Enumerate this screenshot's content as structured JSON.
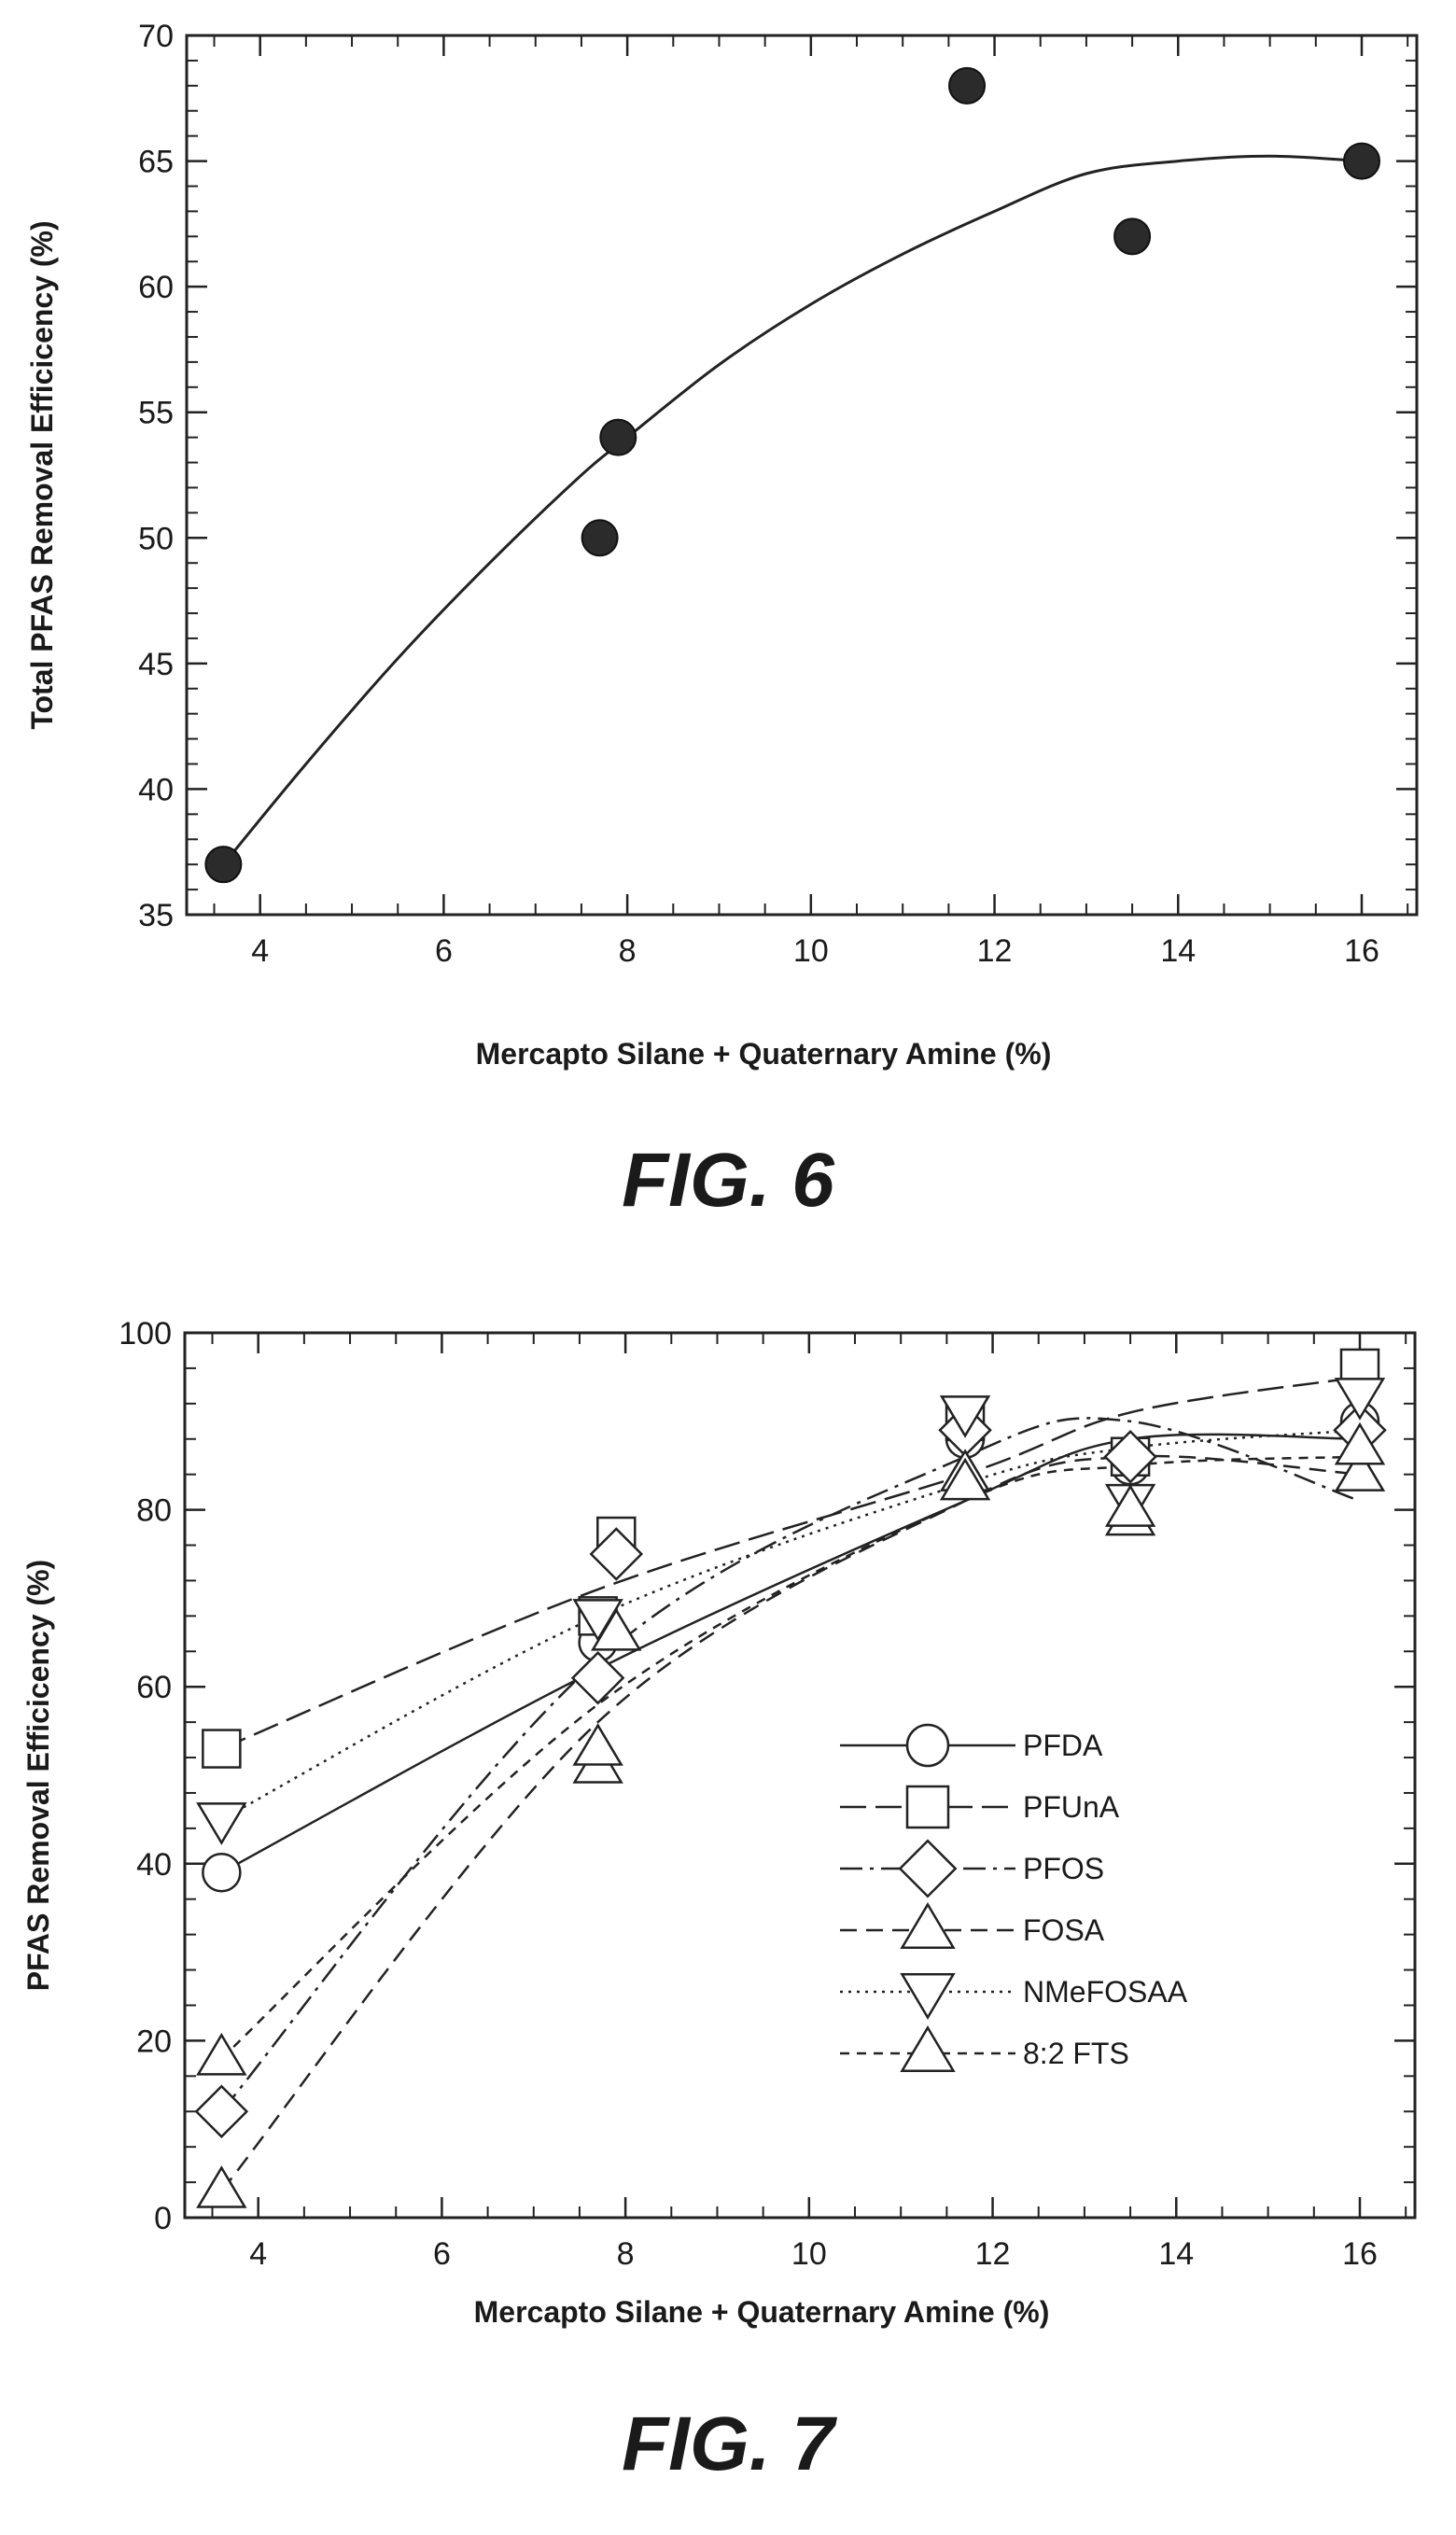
{
  "figures": [
    {
      "caption": "FIG. 6"
    },
    {
      "caption": "FIG. 7"
    }
  ],
  "chart_data": [
    {
      "type": "scatter",
      "xlabel": "Mercapto Silane + Quaternary Amine (%)",
      "ylabel": "Total PFAS Removal Efficicency (%)",
      "xlim": [
        3.2,
        16.6
      ],
      "ylim": [
        35,
        70
      ],
      "xticks": [
        4,
        6,
        8,
        10,
        12,
        14,
        16
      ],
      "yticks": [
        35,
        40,
        45,
        50,
        55,
        60,
        65,
        70
      ],
      "grid": false,
      "series": [
        {
          "x": [
            3.6,
            7.7,
            7.9,
            11.7,
            13.5,
            16.0
          ],
          "y": [
            37,
            50,
            54,
            68,
            62,
            65
          ]
        }
      ],
      "fit_curve": {
        "x": [
          3.6,
          4.5,
          5.5,
          6.5,
          7.5,
          8.0,
          9.0,
          10.0,
          11.0,
          12.0,
          13.0,
          14.0,
          15.0,
          16.0
        ],
        "y": [
          37.0,
          41.0,
          45.2,
          49.0,
          52.5,
          54.0,
          56.9,
          59.3,
          61.3,
          63.0,
          64.5,
          65.0,
          65.2,
          65.0
        ]
      }
    },
    {
      "type": "scatter",
      "xlabel": "Mercapto Silane + Quaternary Amine (%)",
      "ylabel": "PFAS Removal Efficicency (%)",
      "xlim": [
        3.2,
        16.6
      ],
      "ylim": [
        0,
        100
      ],
      "xticks": [
        4,
        6,
        8,
        10,
        12,
        14,
        16
      ],
      "yticks": [
        0,
        20,
        40,
        60,
        80,
        100
      ],
      "grid": false,
      "legend_position": "center-right",
      "series": [
        {
          "name": "PFDA",
          "marker": "circle",
          "dash": "solid",
          "x": [
            3.6,
            7.7,
            11.7,
            13.5,
            16.0
          ],
          "y": [
            39,
            65,
            88,
            85,
            90
          ],
          "fit_y": [
            39,
            62,
            81,
            88,
            88
          ]
        },
        {
          "name": "PFUnA",
          "marker": "square",
          "dash": "longdash",
          "x": [
            3.6,
            7.7,
            7.9,
            11.7,
            13.5,
            16.0
          ],
          "y": [
            53,
            68,
            77,
            90,
            86,
            96
          ],
          "fit_y": [
            53,
            71,
            84,
            91,
            95
          ]
        },
        {
          "name": "PFOS",
          "marker": "diamond",
          "dash": "dashdot",
          "x": [
            3.6,
            7.7,
            7.9,
            11.7,
            13.5,
            16.0
          ],
          "y": [
            12,
            61,
            75,
            89,
            86,
            89
          ],
          "fit_y": [
            12,
            63,
            86,
            90,
            81
          ]
        },
        {
          "name": "FOSA",
          "marker": "triangle-up",
          "dash": "dashed",
          "x": [
            3.6,
            7.7,
            7.9,
            11.7,
            13.5,
            16.0
          ],
          "y": [
            3,
            51,
            66,
            84,
            79,
            84
          ],
          "fit_y": [
            3,
            56,
            81,
            86,
            84
          ]
        },
        {
          "name": "NMeFOSAA",
          "marker": "triangle-down",
          "dash": "dotted",
          "x": [
            3.6,
            7.7,
            11.7,
            13.5,
            16.0
          ],
          "y": [
            45,
            68,
            91,
            81,
            93
          ],
          "fit_y": [
            45,
            68,
            83,
            87,
            89
          ]
        },
        {
          "name": "8:2 FTS",
          "marker": "triangle-up",
          "dash": "shortdash",
          "x": [
            3.6,
            7.7,
            11.7,
            13.5,
            16.0
          ],
          "y": [
            18,
            53,
            83,
            80,
            87
          ],
          "fit_y": [
            18,
            58,
            81,
            85,
            86
          ]
        }
      ]
    }
  ]
}
